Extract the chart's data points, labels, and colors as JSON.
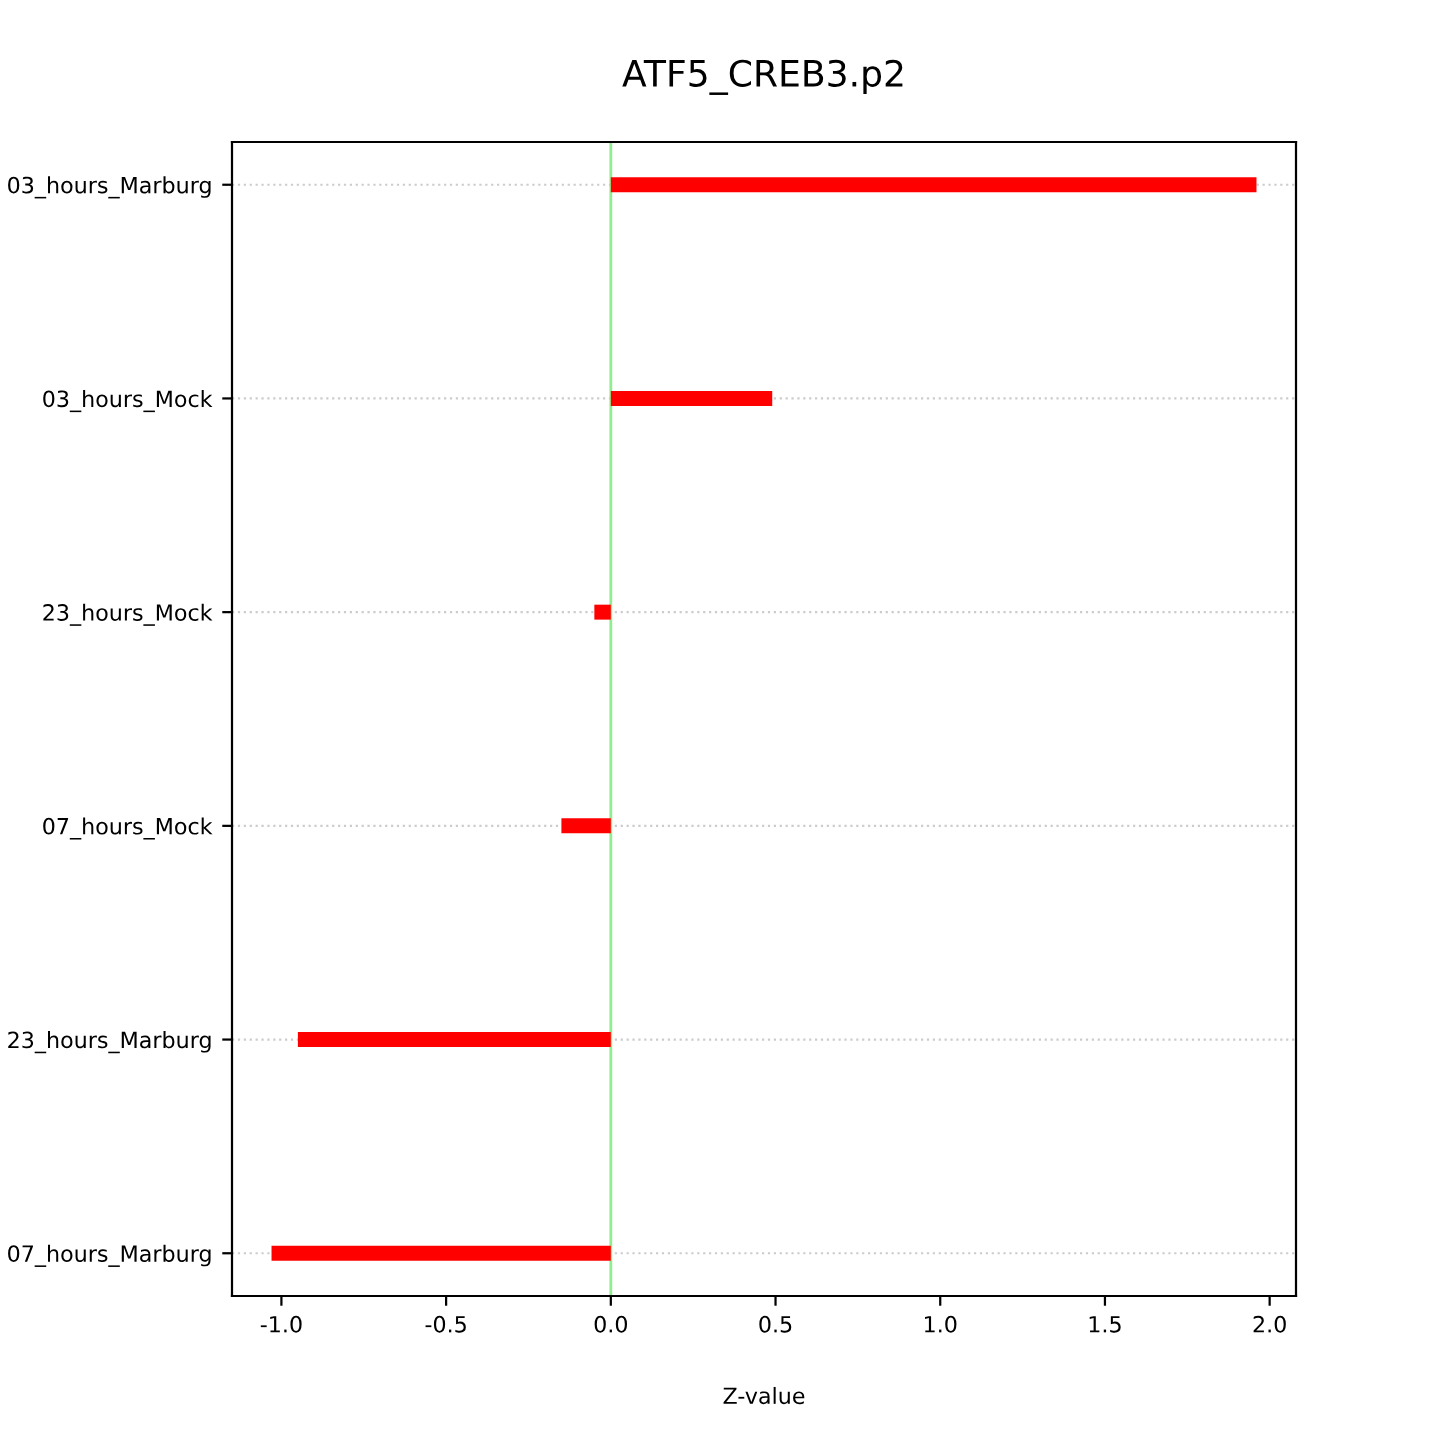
{
  "chart_data": {
    "type": "bar",
    "orientation": "horizontal",
    "title": "ATF5_CREB3.p2",
    "xlabel": "Z-value",
    "categories": [
      "03_hours_Marburg",
      "03_hours_Mock",
      "23_hours_Mock",
      "07_hours_Mock",
      "23_hours_Marburg",
      "07_hours_Marburg"
    ],
    "values": [
      1.96,
      0.49,
      -0.05,
      -0.15,
      -0.95,
      -1.03
    ],
    "color": "#ff0000",
    "xlim": [
      -1.15,
      2.08
    ],
    "xticks": [
      {
        "value": -1,
        "label": "-1.0"
      },
      {
        "value": -0.5,
        "label": "-0.5"
      },
      {
        "value": 0,
        "label": "0.0"
      },
      {
        "value": 0.5,
        "label": "0.5"
      },
      {
        "value": 1,
        "label": "1.0"
      },
      {
        "value": 1.5,
        "label": "1.5"
      },
      {
        "value": 2,
        "label": "2.0"
      }
    ],
    "grid": "y",
    "ref_lines": [
      {
        "axis": "x",
        "value": 0,
        "label": null,
        "color": "#90ee90"
      }
    ]
  }
}
